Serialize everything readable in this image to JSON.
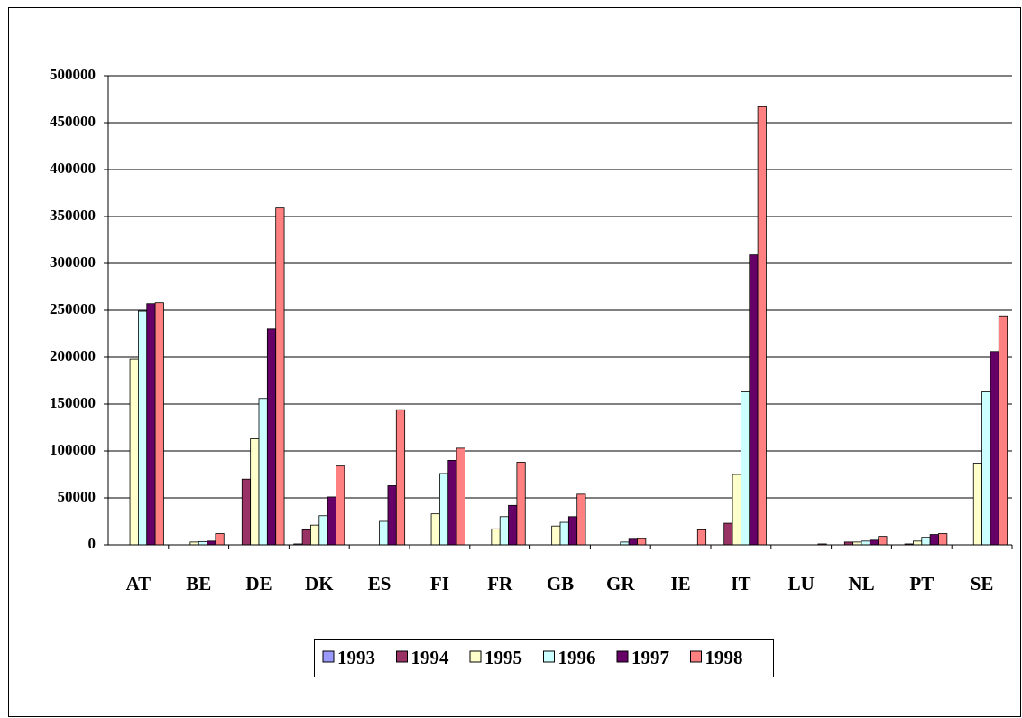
{
  "chart_data": {
    "type": "bar",
    "categories": [
      "AT",
      "BE",
      "DE",
      "DK",
      "ES",
      "FI",
      "FR",
      "GB",
      "GR",
      "IE",
      "IT",
      "LU",
      "NL",
      "PT",
      "SE"
    ],
    "series": [
      {
        "name": "1993",
        "color": "#9999ff",
        "values": [
          0,
          0,
          0,
          1000,
          0,
          0,
          0,
          0,
          0,
          0,
          0,
          0,
          0,
          0,
          0
        ]
      },
      {
        "name": "1994",
        "color": "#993366",
        "values": [
          0,
          0,
          70000,
          16000,
          0,
          0,
          0,
          0,
          0,
          0,
          23000,
          0,
          3000,
          1000,
          0
        ]
      },
      {
        "name": "1995",
        "color": "#ffffcc",
        "values": [
          198000,
          3000,
          113000,
          21000,
          0,
          33000,
          17000,
          20000,
          0,
          0,
          75000,
          0,
          3000,
          4000,
          87000
        ]
      },
      {
        "name": "1996",
        "color": "#ccffff",
        "values": [
          249000,
          3500,
          156000,
          31000,
          25000,
          76000,
          30000,
          24000,
          3000,
          0,
          163000,
          0,
          4000,
          8000,
          163000
        ]
      },
      {
        "name": "1997",
        "color": "#660066",
        "values": [
          257000,
          4000,
          230000,
          51000,
          63000,
          90000,
          42000,
          30000,
          6000,
          0,
          309000,
          0,
          5000,
          11000,
          206000
        ]
      },
      {
        "name": "1998",
        "color": "#ff8080",
        "values": [
          258000,
          12000,
          359000,
          84000,
          144000,
          103000,
          88000,
          54000,
          6500,
          16000,
          467000,
          1000,
          9000,
          12000,
          244000
        ]
      }
    ],
    "ylim": [
      0,
      500000
    ],
    "yticks": [
      0,
      50000,
      100000,
      150000,
      200000,
      250000,
      300000,
      350000,
      400000,
      450000,
      500000
    ],
    "grid": true,
    "legend": "bottom"
  }
}
